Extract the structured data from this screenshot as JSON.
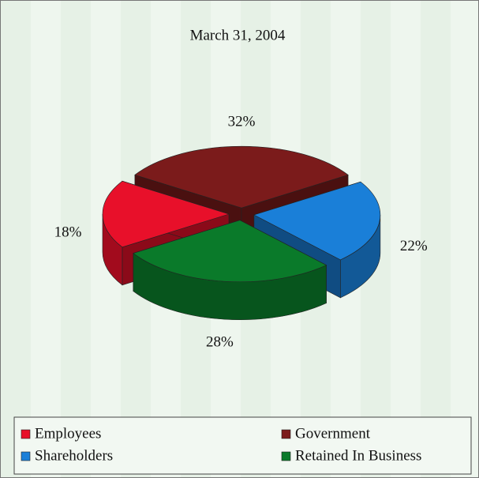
{
  "chart_data": {
    "type": "pie",
    "title": "March 31, 2004",
    "categories": [
      "Employees",
      "Government",
      "Shareholders",
      "Retained In Business"
    ],
    "values": [
      18,
      32,
      22,
      28
    ],
    "value_labels": [
      "18%",
      "32%",
      "22%",
      "28%"
    ],
    "colors": [
      "#e8102a",
      "#7b1b1b",
      "#1a7fd8",
      "#0a7a2a"
    ],
    "legend": "bottom"
  }
}
